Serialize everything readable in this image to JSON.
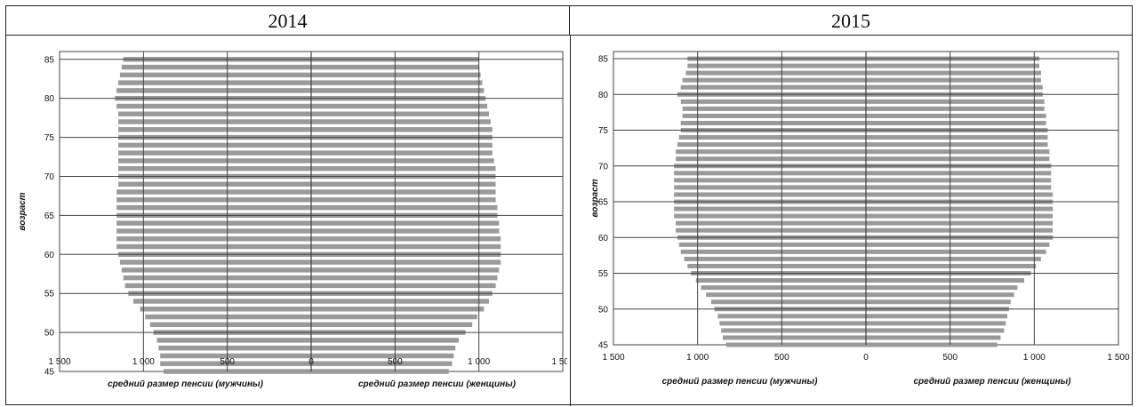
{
  "headers": {
    "left": "2014",
    "right": "2015"
  },
  "chart_data": [
    {
      "type": "bar",
      "title": "2014",
      "ylabel": "возраст",
      "xlabel_left": "средний размер пенсии (мужчины)",
      "xlabel_right": "средний размер пенсии (женщины)",
      "xlim": [
        -1500,
        1500
      ],
      "ylim": [
        45,
        86
      ],
      "x_ticks": [
        "1 500",
        "1 000",
        "500",
        "0",
        "500",
        "1 000",
        "1 500"
      ],
      "y_ticks": [
        "45",
        "50",
        "55",
        "60",
        "65",
        "70",
        "75",
        "80",
        "85"
      ],
      "colors": {
        "bars": "#9a9a9a",
        "grid": "#444444"
      },
      "grid": true,
      "series": [
        {
          "name": "мужчины",
          "ages": [
            45,
            46,
            47,
            48,
            49,
            50,
            51,
            52,
            53,
            54,
            55,
            56,
            57,
            58,
            59,
            60,
            61,
            62,
            63,
            64,
            65,
            66,
            67,
            68,
            69,
            70,
            71,
            72,
            73,
            74,
            75,
            76,
            77,
            78,
            79,
            80,
            81,
            82,
            83,
            84,
            85
          ],
          "values": [
            880,
            900,
            900,
            910,
            920,
            940,
            960,
            990,
            1020,
            1060,
            1090,
            1110,
            1120,
            1130,
            1140,
            1150,
            1160,
            1160,
            1160,
            1160,
            1160,
            1160,
            1160,
            1160,
            1150,
            1150,
            1150,
            1150,
            1150,
            1150,
            1150,
            1150,
            1150,
            1150,
            1160,
            1170,
            1160,
            1150,
            1140,
            1130,
            1120
          ]
        },
        {
          "name": "женщины",
          "ages": [
            45,
            46,
            47,
            48,
            49,
            50,
            51,
            52,
            53,
            54,
            55,
            56,
            57,
            58,
            59,
            60,
            61,
            62,
            63,
            64,
            65,
            66,
            67,
            68,
            69,
            70,
            71,
            72,
            73,
            74,
            75,
            76,
            77,
            78,
            79,
            80,
            81,
            82,
            83,
            84,
            85
          ],
          "values": [
            820,
            840,
            850,
            860,
            880,
            920,
            960,
            990,
            1030,
            1060,
            1080,
            1100,
            1110,
            1120,
            1130,
            1130,
            1130,
            1130,
            1120,
            1120,
            1110,
            1110,
            1100,
            1100,
            1100,
            1100,
            1100,
            1090,
            1080,
            1080,
            1080,
            1080,
            1070,
            1060,
            1050,
            1040,
            1030,
            1020,
            1010,
            1000,
            1000
          ]
        }
      ]
    },
    {
      "type": "bar",
      "title": "2015",
      "ylabel": "возраст",
      "xlabel_left": "средний размер пенсии (мужчины)",
      "xlabel_right": "средний размер пенсии (женщины)",
      "xlim": [
        -1500,
        1500
      ],
      "ylim": [
        45,
        86
      ],
      "x_ticks": [
        "1 500",
        "1 000",
        "500",
        "0",
        "500",
        "1 000",
        "1 500"
      ],
      "y_ticks": [
        "45",
        "50",
        "55",
        "60",
        "65",
        "70",
        "75",
        "80",
        "85"
      ],
      "colors": {
        "bars": "#9a9a9a",
        "grid": "#444444"
      },
      "grid": true,
      "series": [
        {
          "name": "мужчины",
          "ages": [
            45,
            46,
            47,
            48,
            49,
            50,
            51,
            52,
            53,
            54,
            55,
            56,
            57,
            58,
            59,
            60,
            61,
            62,
            63,
            64,
            65,
            66,
            67,
            68,
            69,
            70,
            71,
            72,
            73,
            74,
            75,
            76,
            77,
            78,
            79,
            80,
            81,
            82,
            83,
            84,
            85
          ],
          "values": [
            830,
            850,
            860,
            870,
            880,
            900,
            920,
            950,
            980,
            1010,
            1040,
            1060,
            1080,
            1100,
            1110,
            1120,
            1130,
            1130,
            1140,
            1140,
            1140,
            1140,
            1140,
            1140,
            1140,
            1140,
            1130,
            1130,
            1120,
            1110,
            1100,
            1100,
            1090,
            1090,
            1100,
            1120,
            1100,
            1090,
            1070,
            1060,
            1060
          ]
        },
        {
          "name": "женщины",
          "ages": [
            45,
            46,
            47,
            48,
            49,
            50,
            51,
            52,
            53,
            54,
            55,
            56,
            57,
            58,
            59,
            60,
            61,
            62,
            63,
            64,
            65,
            66,
            67,
            68,
            69,
            70,
            71,
            72,
            73,
            74,
            75,
            76,
            77,
            78,
            79,
            80,
            81,
            82,
            83,
            84,
            85
          ],
          "values": [
            780,
            800,
            820,
            830,
            840,
            850,
            860,
            880,
            900,
            940,
            980,
            1010,
            1040,
            1070,
            1090,
            1110,
            1110,
            1110,
            1110,
            1110,
            1110,
            1110,
            1100,
            1100,
            1100,
            1100,
            1090,
            1090,
            1080,
            1080,
            1080,
            1070,
            1070,
            1060,
            1060,
            1050,
            1050,
            1040,
            1040,
            1030,
            1030
          ]
        }
      ]
    }
  ]
}
